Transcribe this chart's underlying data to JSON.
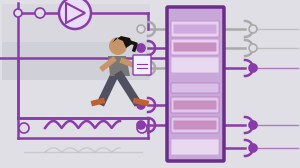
{
  "bg_color": "#e0dfe6",
  "bg_top_color": "#d8d8de",
  "panel_color": "#c8a8d8",
  "panel_border": "#6a2d8a",
  "line_purple": "#8a3aaa",
  "line_gray": "#aaaaaa",
  "slot_light": "#ddc8ec",
  "slot_pink": "#d4a0c8",
  "slot_border": "#b080c0",
  "person_skin": "#c8956a",
  "person_hair": "#1a1010",
  "person_shirt": "#787878",
  "person_pants": "#505060",
  "person_shoes": "#c06030"
}
